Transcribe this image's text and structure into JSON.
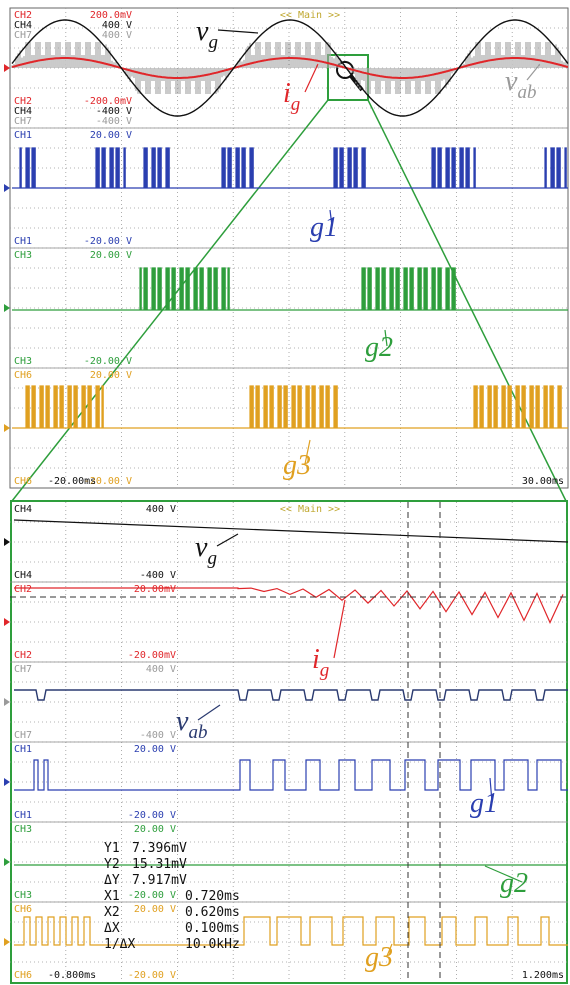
{
  "channel_colors": {
    "CH1": "#2b3fb0",
    "CH2": "#e0262a",
    "CH3": "#2e9e3c",
    "CH4": "#111111",
    "CH6": "#e0a020",
    "CH7": "#9a9a9a"
  },
  "top_panel": {
    "mode": "<< Main >>",
    "time_start": "-20.00ms",
    "time_end": "30.00ms",
    "sections": [
      {
        "scale_top": [
          [
            "CH2",
            "200.0mV"
          ],
          [
            "CH4",
            "400 V"
          ],
          [
            "CH7",
            "400 V"
          ]
        ],
        "scale_bottom": [
          [
            "CH2",
            "-200.0mV"
          ],
          [
            "CH4",
            "-400 V"
          ],
          [
            "CH7",
            "-400 V"
          ]
        ],
        "signals": [
          {
            "main": "v",
            "sub": "g",
            "color": "#111111"
          },
          {
            "main": "i",
            "sub": "g",
            "color": "#e0262a"
          },
          {
            "main": "v",
            "sub": "ab",
            "color": "#9a9a9a"
          }
        ]
      },
      {
        "scale_top": [
          [
            "CH1",
            "20.00 V"
          ]
        ],
        "scale_bottom": [
          [
            "CH1",
            "-20.00 V"
          ]
        ],
        "signals": [
          {
            "main": "g1",
            "color": "#2b3fb0"
          }
        ]
      },
      {
        "scale_top": [
          [
            "CH3",
            "20.00 V"
          ]
        ],
        "scale_bottom": [
          [
            "CH3",
            "-20.00 V"
          ]
        ],
        "signals": [
          {
            "main": "g2",
            "color": "#2e9e3c"
          }
        ]
      },
      {
        "scale_top": [
          [
            "CH6",
            "20.00 V"
          ]
        ],
        "scale_bottom": [
          [
            "CH6",
            "-20.00 V"
          ]
        ],
        "signals": [
          {
            "main": "g3",
            "color": "#e0a020"
          }
        ]
      }
    ]
  },
  "bottom_panel": {
    "mode": "<< Main >>",
    "time_start": "-0.800ms",
    "time_end": "1.200ms",
    "sections": [
      {
        "scale_top": [
          [
            "CH4",
            "400 V"
          ]
        ],
        "scale_bottom": [
          [
            "CH4",
            "-400 V"
          ]
        ],
        "signals": [
          {
            "main": "v",
            "sub": "g",
            "color": "#111111"
          }
        ]
      },
      {
        "scale_top": [
          [
            "CH2",
            "20.00mV"
          ]
        ],
        "scale_bottom": [
          [
            "CH2",
            "-20.00mV"
          ]
        ],
        "signals": [
          {
            "main": "i",
            "sub": "g",
            "color": "#e0262a"
          }
        ]
      },
      {
        "scale_top": [
          [
            "CH7",
            "400 V"
          ]
        ],
        "scale_bottom": [
          [
            "CH7",
            "-400 V"
          ]
        ],
        "signals": [
          {
            "main": "v",
            "sub": "ab",
            "color": "#2a3a70"
          }
        ]
      },
      {
        "scale_top": [
          [
            "CH1",
            "20.00 V"
          ]
        ],
        "scale_bottom": [
          [
            "CH1",
            "-20.00 V"
          ]
        ],
        "signals": [
          {
            "main": "g1",
            "color": "#2b3fb0"
          }
        ]
      },
      {
        "scale_top": [
          [
            "CH3",
            "20.00 V"
          ]
        ],
        "scale_bottom": [
          [
            "CH3",
            "-20.00 V"
          ]
        ],
        "signals": [
          {
            "main": "g2",
            "color": "#2e9e3c"
          }
        ]
      },
      {
        "scale_top": [
          [
            "CH6",
            "20.00 V"
          ]
        ],
        "scale_bottom": [
          [
            "CH6",
            "-20.00 V"
          ]
        ],
        "signals": [
          {
            "main": "g3",
            "color": "#e0a020"
          }
        ]
      }
    ],
    "measurements": [
      [
        "Y1",
        "7.396mV"
      ],
      [
        "Y2",
        "15.31mV"
      ],
      [
        "ΔY",
        "7.917mV"
      ],
      [
        "X1",
        "0.720ms"
      ],
      [
        "X2",
        "0.620ms"
      ],
      [
        "ΔX",
        "0.100ms"
      ],
      [
        "1/ΔX",
        "10.0kHz"
      ]
    ]
  }
}
